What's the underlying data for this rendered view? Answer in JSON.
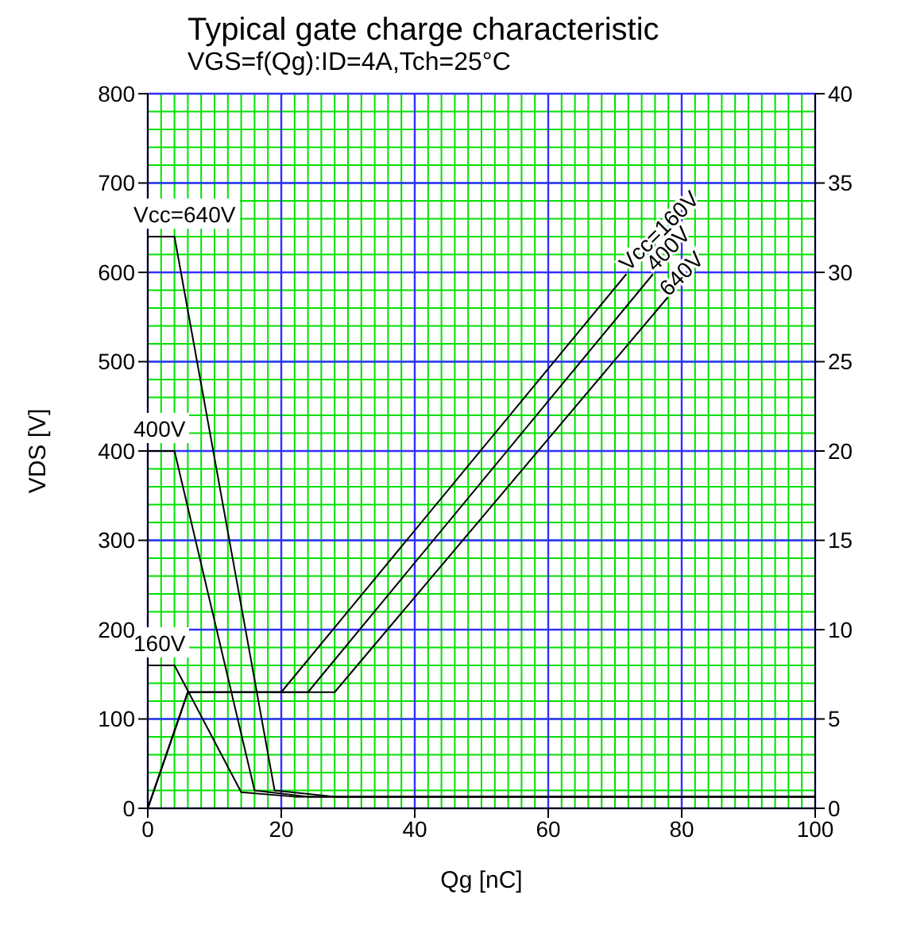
{
  "chart_data": {
    "type": "line",
    "title": "Typical gate charge characteristic",
    "subtitle": "VGS=f(Qg):ID=4A,Tch=25°C",
    "xlabel": "Qg [nC]",
    "ylabel": "VDS [V]",
    "xlim": [
      0,
      100
    ],
    "xticks": [
      0,
      20,
      40,
      60,
      80,
      100
    ],
    "ylim": [
      0,
      800
    ],
    "yticks": [
      0,
      100,
      200,
      300,
      400,
      500,
      600,
      700,
      800
    ],
    "y2lim": [
      0,
      40
    ],
    "y2ticks": [
      0,
      5,
      10,
      15,
      20,
      25,
      30,
      35,
      40
    ],
    "grid": true,
    "marker": "none",
    "line_style": "solid",
    "series": [
      {
        "color": "#000000",
        "x": [
          0,
          4,
          19,
          28,
          100
        ],
        "values": [
          640,
          640,
          20,
          13,
          13
        ]
      },
      {
        "color": "#000000",
        "x": [
          0,
          4,
          16,
          24,
          100
        ],
        "values": [
          400,
          400,
          20,
          13,
          13
        ]
      },
      {
        "color": "#000000",
        "x": [
          0,
          4,
          14,
          22,
          100
        ],
        "values": [
          160,
          160,
          18,
          13,
          13
        ]
      },
      {
        "color": "#000000",
        "axis": "y2",
        "x": [
          0,
          6,
          20,
          71.7
        ],
        "values": [
          0,
          6.5,
          6.5,
          29.9
        ]
      },
      {
        "color": "#000000",
        "axis": "y2",
        "x": [
          0,
          6,
          24,
          75.7
        ],
        "values": [
          0,
          6.5,
          6.5,
          29.9
        ]
      },
      {
        "color": "#000000",
        "axis": "y2",
        "x": [
          0,
          6,
          28,
          77.9
        ],
        "values": [
          0,
          6.5,
          6.5,
          28.6
        ]
      }
    ],
    "annotations": [
      {
        "text": "Vcc=640V",
        "x": 0,
        "y": 640
      },
      {
        "text": "400V",
        "x": 0,
        "y": 400
      },
      {
        "text": "160V",
        "x": 0,
        "y": 160
      },
      {
        "text": "Vcc=160V",
        "x": 72,
        "y": 600
      },
      {
        "text": "400V",
        "x": 76,
        "y": 600
      },
      {
        "text": "640V",
        "x": 78,
        "y": 572
      }
    ]
  }
}
